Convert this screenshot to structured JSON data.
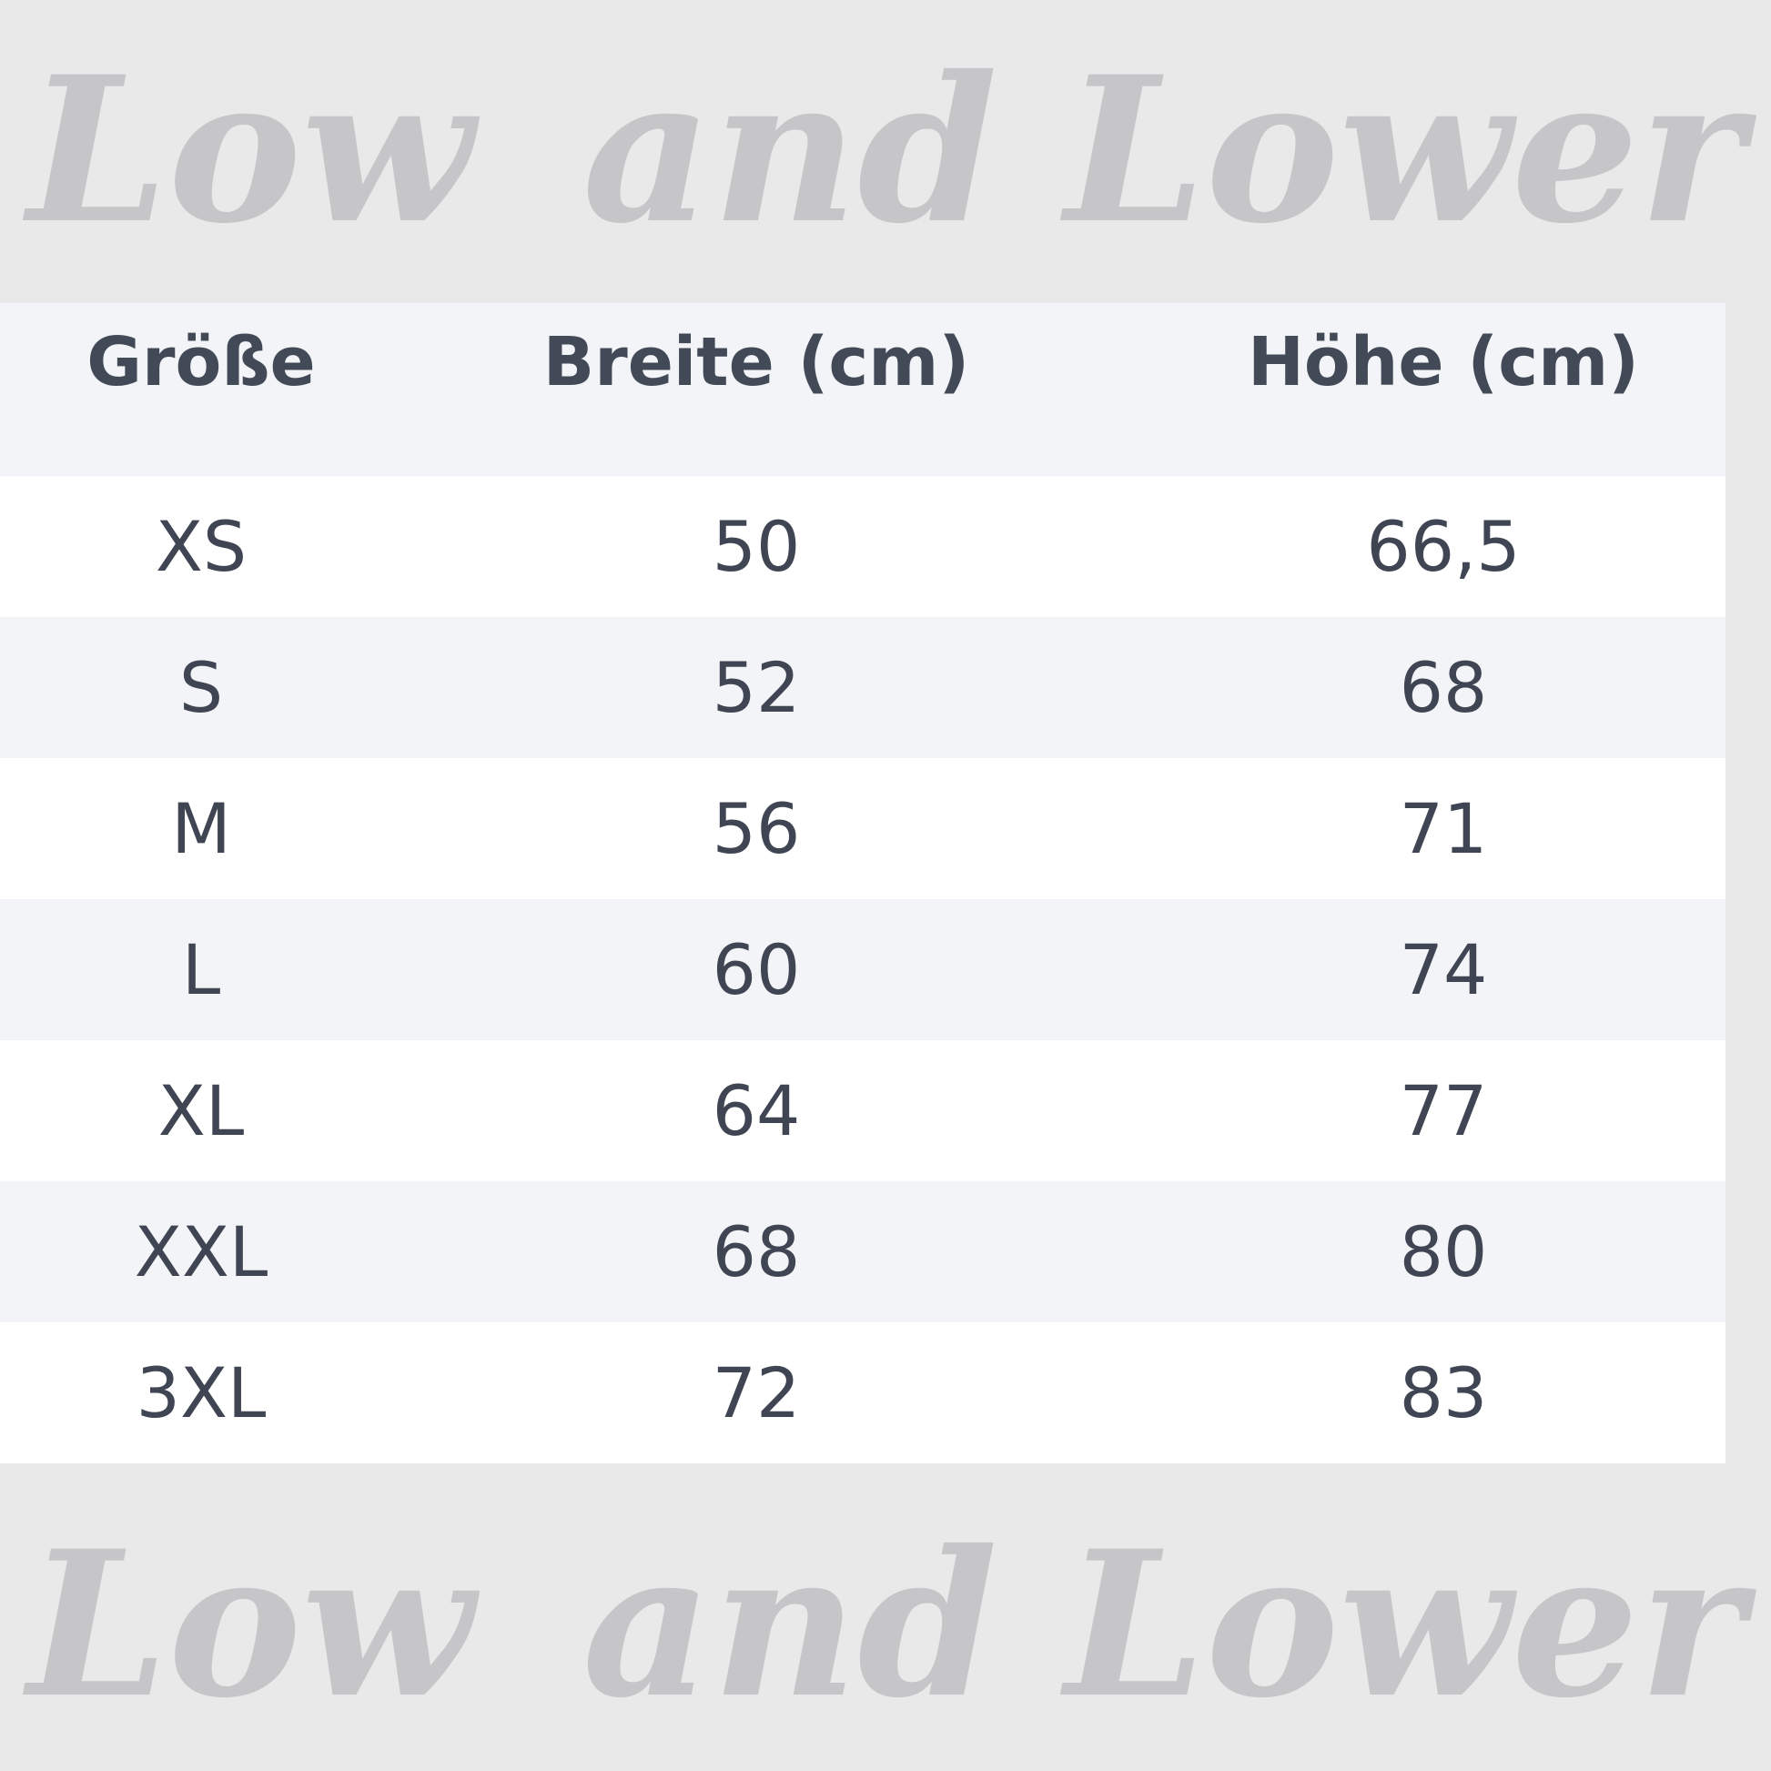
{
  "watermark": {
    "text": "Low and Lower",
    "color": "#c6c6c8"
  },
  "table": {
    "headers": [
      "Größe",
      "Breite (cm)",
      "Höhe (cm)"
    ],
    "rows": [
      [
        "XS",
        "50",
        "66,5"
      ],
      [
        "S",
        "52",
        "68"
      ],
      [
        "M",
        "56",
        "71"
      ],
      [
        "L",
        "60",
        "74"
      ],
      [
        "XL",
        "64",
        "77"
      ],
      [
        "XXL",
        "68",
        "80"
      ],
      [
        "3XL",
        "72",
        "83"
      ]
    ]
  },
  "colors": {
    "text": "#3f4553",
    "row_alt": "#f3f4f7",
    "background": "#e9e9ea"
  }
}
